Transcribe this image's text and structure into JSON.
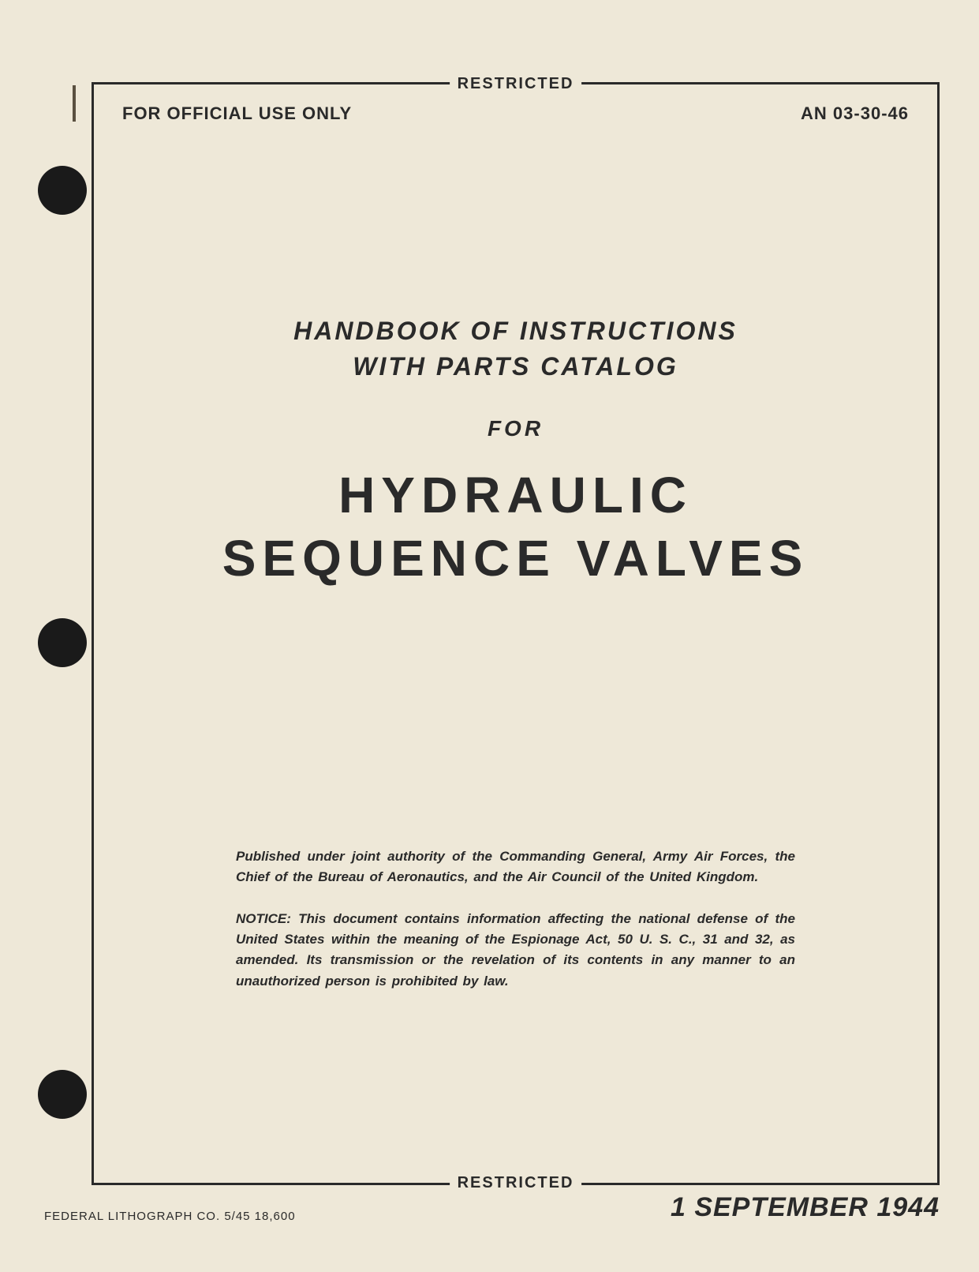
{
  "classification": "RESTRICTED",
  "header": {
    "official_use": "FOR OFFICIAL USE ONLY",
    "doc_number": "AN 03-30-46"
  },
  "subtitle": {
    "line1": "HANDBOOK OF INSTRUCTIONS",
    "line2": "WITH PARTS CATALOG",
    "for": "FOR"
  },
  "title": {
    "line1": "HYDRAULIC",
    "line2": "SEQUENCE VALVES"
  },
  "notices": {
    "authority": "Published under joint authority of the Commanding General, Army Air Forces, the Chief of the Bureau of Aeronautics, and the Air Council of the United Kingdom.",
    "espionage": "NOTICE: This document contains information affecting the national defense of the United States within the meaning of the Espionage Act, 50 U. S. C., 31 and 32, as amended. Its transmission or the revelation of its contents in any manner to an unauthorized person is prohibited by law."
  },
  "footer": {
    "printer": "FEDERAL LITHOGRAPH CO.    5/45    18,600",
    "date": "1 SEPTEMBER 1944"
  },
  "colors": {
    "page_bg": "#eee8d8",
    "text": "#2a2a2a",
    "hole": "#1a1a1a",
    "outer_bg": "#3a3a3a"
  }
}
